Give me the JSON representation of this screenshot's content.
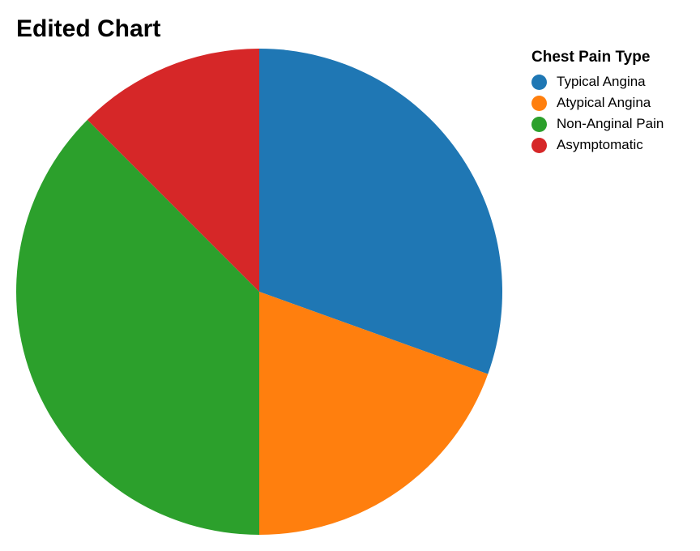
{
  "chart_data": {
    "type": "pie",
    "title": "Edited Chart",
    "legend_title": "Chest Pain Type",
    "legend_position": "top-right",
    "slices": [
      {
        "label": "Typical Angina",
        "value": 30.5,
        "color": "#1f77b4"
      },
      {
        "label": "Atypical Angina",
        "value": 19.5,
        "color": "#ff7f0e"
      },
      {
        "label": "Non-Anginal Pain",
        "value": 37.5,
        "color": "#2ca02c"
      },
      {
        "label": "Asymptomatic",
        "value": 12.5,
        "color": "#d62728"
      }
    ]
  }
}
